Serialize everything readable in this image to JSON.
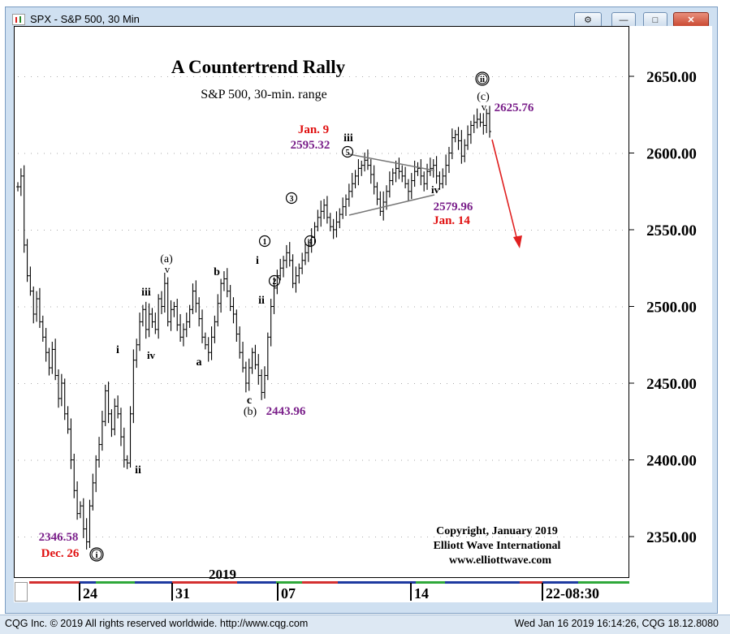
{
  "window": {
    "title": "SPX - S&P 500, 30 Min",
    "buttons": {
      "link": "⚙",
      "minimize": "—",
      "maximize": "□",
      "close": "✕"
    }
  },
  "chart_data": {
    "type": "bar",
    "title": "A Countertrend Rally",
    "subtitle": "S&P 500, 30-min. range",
    "xlabel": "",
    "ylabel": "",
    "y_ticks": [
      "2350.00",
      "2400.00",
      "2450.00",
      "2500.00",
      "2550.00",
      "2600.00",
      "2650.00"
    ],
    "y_tick_values": [
      2350,
      2400,
      2450,
      2500,
      2550,
      2600,
      2650
    ],
    "ylim": [
      2325,
      2680
    ],
    "x_ticks": [
      "24",
      "31",
      "07",
      "14",
      "22-08:30"
    ],
    "x_year_label": "2019",
    "series": [
      {
        "values": [
          2578,
          2585,
          2540,
          2520,
          2510,
          2495,
          2505,
          2490,
          2480,
          2470,
          2460,
          2472,
          2455,
          2440,
          2450,
          2430,
          2420,
          2400,
          2380,
          2365,
          2370,
          2355,
          2346.58,
          2370,
          2385,
          2400,
          2410,
          2425,
          2445,
          2430,
          2420,
          2435,
          2430,
          2415,
          2400,
          2398,
          2430,
          2465,
          2475,
          2490,
          2498,
          2485,
          2495,
          2490,
          2485,
          2505,
          2500,
          2515,
          2490,
          2498,
          2500,
          2488,
          2480,
          2485,
          2490,
          2498,
          2510,
          2502,
          2492,
          2480,
          2475,
          2470,
          2480,
          2490,
          2502,
          2515,
          2518,
          2510,
          2500,
          2495,
          2482,
          2470,
          2460,
          2450,
          2460,
          2470,
          2462,
          2455,
          2443.96,
          2455,
          2480,
          2500,
          2512,
          2520,
          2525,
          2530,
          2535,
          2530,
          2515,
          2520,
          2525,
          2530,
          2535,
          2540,
          2545,
          2552,
          2558,
          2562,
          2566,
          2558,
          2552,
          2550,
          2555,
          2560,
          2565,
          2570,
          2575,
          2580,
          2585,
          2590,
          2592,
          2595.32,
          2592,
          2586,
          2578,
          2570,
          2562,
          2568,
          2575,
          2582,
          2587,
          2590,
          2588,
          2585,
          2580,
          2575,
          2582,
          2588,
          2590,
          2585,
          2580,
          2588,
          2590,
          2592,
          2585,
          2579.96,
          2585,
          2592,
          2600,
          2610,
          2612,
          2608,
          2598,
          2605,
          2612,
          2618,
          2620,
          2622,
          2620,
          2618,
          2625.76,
          2614
        ]
      }
    ],
    "annotations": {
      "jan9_date": "Jan. 9",
      "jan9_value": "2595.32",
      "jan14_value": "2579.96",
      "jan14_date": "Jan. 14",
      "dec26_value": "2346.58",
      "dec26_date": "Dec. 26",
      "b_value": "2443.96",
      "high_value": "2625.76",
      "wave_ii_circ": "ii",
      "wave_c_paren": "(c)",
      "wave_v_top": "v",
      "wave_iii_top": "iii",
      "wave_5": "5",
      "wave_iv_top": "iv",
      "wave_3": "3",
      "wave_4": "4",
      "wave_1": "1",
      "wave_2": "2",
      "wave_i_mid": "i",
      "wave_ii_mid": "ii",
      "wave_a_paren": "(a)",
      "wave_v_mid": "v",
      "wave_b": "b",
      "wave_iii_left": "iii",
      "wave_iv_left": "iv",
      "wave_a": "a",
      "wave_i_left": "i",
      "wave_ii_left": "ii",
      "wave_c": "c",
      "wave_b_paren": "(b)",
      "wave_i_circ": "i"
    },
    "copyright": [
      "Copyright, January 2019",
      "Elliott Wave International",
      "www.elliottwave.com"
    ],
    "colors": {
      "purple": "#7a1f8a",
      "red": "#e01010",
      "arrow": "#e02020"
    }
  },
  "footer": {
    "left": "CQG Inc. © 2019 All rights reserved worldwide. http://www.cqg.com",
    "right": "Wed Jan 16 2019 16:14:26, CQG 18.12.8080"
  }
}
